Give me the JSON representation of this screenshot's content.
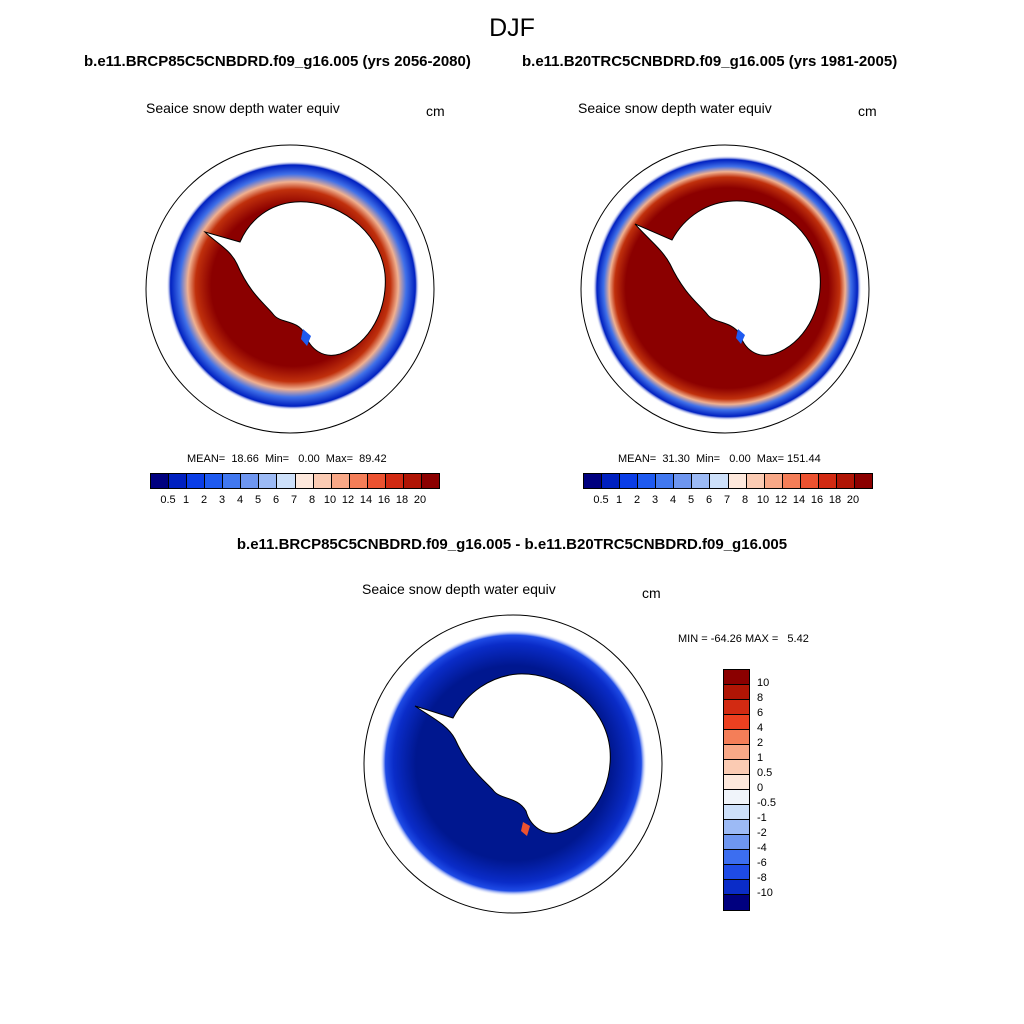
{
  "title": "DJF",
  "panels": [
    {
      "case": "b.e11.BRCP85C5CNBDRD.f09_g16.005 (yrs 2056-2080)",
      "variable": "Seaice snow depth water equiv",
      "units": "cm",
      "stats": "MEAN=  18.66  Min=   0.00  Max=  89.42",
      "ice_color": "#8b0000"
    },
    {
      "case": "b.e11.B20TRC5CNBDRD.f09_g16.005 (yrs 1981-2005)",
      "variable": "Seaice snow depth water equiv",
      "units": "cm",
      "stats": "MEAN=  31.30  Min=   0.00  Max= 151.44",
      "ice_color": "#8b0000"
    }
  ],
  "difference": {
    "title": "b.e11.BRCP85C5CNBDRD.f09_g16.005 - b.e11.B20TRC5CNBDRD.f09_g16.005",
    "variable": "Seaice snow depth water equiv",
    "units": "cm",
    "stats": "MIN = -64.26 MAX =   5.42",
    "ice_color": "#00178f"
  },
  "abs_colorbar": {
    "labels": [
      "0.5",
      "1",
      "2",
      "3",
      "4",
      "5",
      "6",
      "7",
      "8",
      "10",
      "12",
      "14",
      "16",
      "18",
      "20"
    ],
    "colors": [
      "#00007f",
      "#0020c0",
      "#0a3de6",
      "#1e5af0",
      "#4178f0",
      "#6e96f0",
      "#9cbaf5",
      "#cde0fa",
      "#fde8dc",
      "#fbcbb3",
      "#f8a887",
      "#f47e58",
      "#ec5230",
      "#d22a12",
      "#b01505",
      "#8b0000"
    ]
  },
  "diff_colorbar": {
    "labels": [
      "10",
      "8",
      "6",
      "4",
      "2",
      "1",
      "0.5",
      "0",
      "-0.5",
      "-1",
      "-2",
      "-4",
      "-6",
      "-8",
      "-10"
    ],
    "colors": [
      "#8b0000",
      "#b01505",
      "#d22a12",
      "#ec4020",
      "#f47e58",
      "#f8a887",
      "#fbcbb3",
      "#fde8dc",
      "#f0f4fa",
      "#cde0fa",
      "#9cbaf5",
      "#6e96f0",
      "#3c6ef0",
      "#1e4be6",
      "#0a2cc8",
      "#00007f"
    ]
  }
}
